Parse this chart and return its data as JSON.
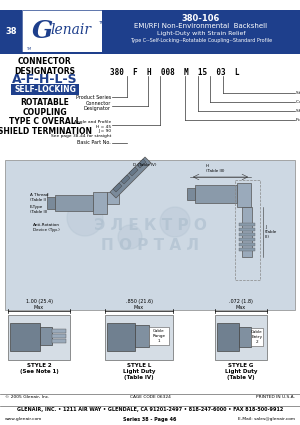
{
  "bg_color": "#ffffff",
  "header_blue": "#1e3f8c",
  "page_number": "38",
  "part_number": "380-106",
  "title_line1": "EMI/RFI Non-Environmental  Backshell",
  "title_line2": "Light-Duty with Strain Relief",
  "title_line3": "Type C--Self-Locking--Rotatable Coupling--Standard Profile",
  "logo_text": "Glenair",
  "designators_header": "CONNECTOR\nDESIGNATORS",
  "designators": "A-F-H-L-S",
  "self_locking": "SELF-LOCKING",
  "rotatable": "ROTATABLE\nCOUPLING",
  "type_c": "TYPE C OVERALL\nSHIELD TERMINATION",
  "part_code": "380  F  H  008  M  15  03  L",
  "drawing_bg": "#cdd8e3",
  "wm_color": "#aabccc",
  "style2_label": "STYLE 2\n(See Note 1)",
  "style2_dim": "1.00 (25.4)\nMax",
  "styleL_label": "STYLE L\nLight Duty\n(Table IV)",
  "styleL_dim": ".850 (21.6)\nMax",
  "styleL_sub": "Cable\nRange\n1",
  "styleG_label": "STYLE G\nLight Duty\n(Table V)",
  "styleG_dim": ".072 (1.8)\nMax",
  "styleG_sub": "Cable\nEntry\n2",
  "footer_copy": "© 2005 Glenair, Inc.",
  "footer_cage": "CAGE CODE 06324",
  "footer_printed": "PRINTED IN U.S.A.",
  "footer_company": "GLENAIR, INC. • 1211 AIR WAY • GLENDALE, CA 91201-2497 • 818-247-6000 • FAX 818-500-9912",
  "footer_web": "www.glenair.com",
  "footer_series": "Series 38 - Page 46",
  "footer_email": "E-Mail: sales@glenair.com"
}
